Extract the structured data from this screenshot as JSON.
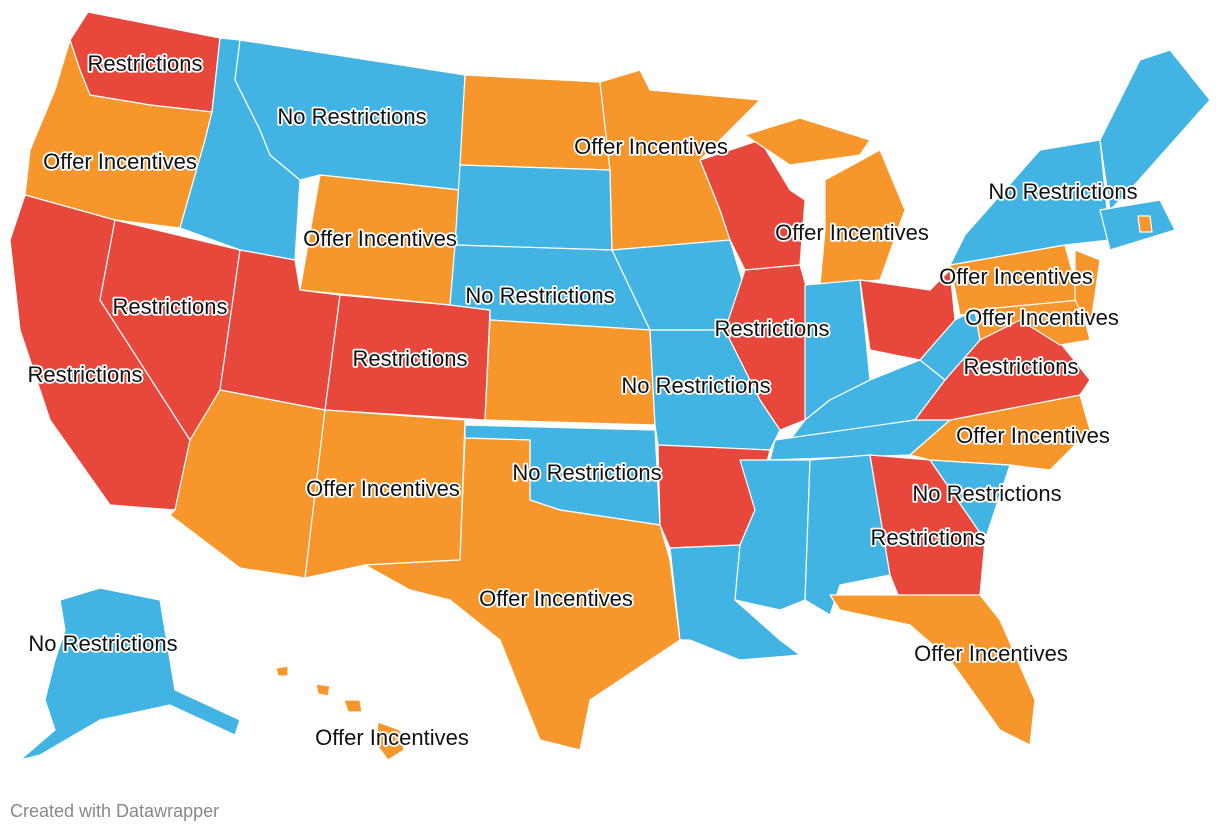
{
  "map": {
    "labels": [
      "Restrictions",
      "No Restrictions",
      "Offer Incentives",
      "Offer Incentives",
      "No Restrictions",
      "Offer Incentives",
      "Offer Incentives",
      "Offer Incentives",
      "No Restrictions",
      "Restrictions",
      "Restrictions",
      "Offer Incentives",
      "Restrictions",
      "Restrictions",
      "Restrictions",
      "No Restrictions",
      "Offer Incentives",
      "No Restrictions",
      "Offer Incentives",
      "No Restrictions",
      "Restrictions",
      "Offer Incentives",
      "No Restrictions",
      "Offer Incentives",
      "Offer Incentives"
    ],
    "footer": "Created with Datawrapper"
  }
}
